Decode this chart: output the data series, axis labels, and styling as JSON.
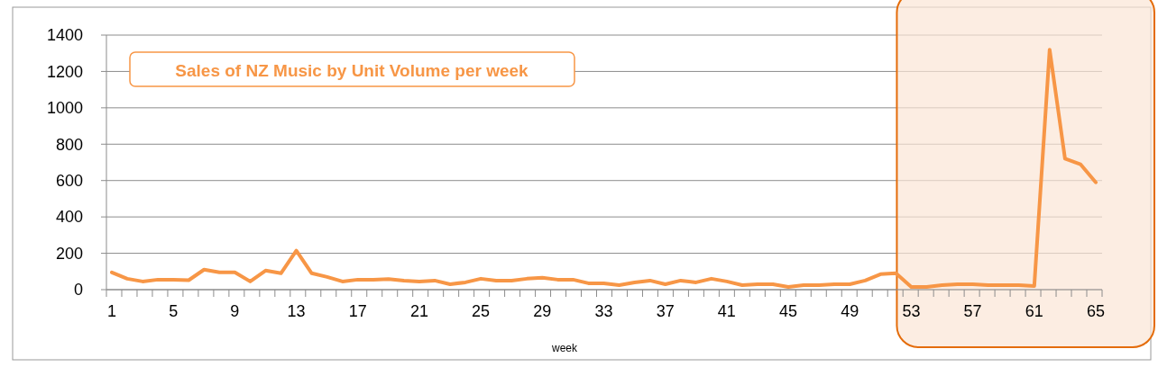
{
  "chart_data": {
    "type": "line",
    "title": "Sales of NZ Music by Unit Volume per week",
    "xlabel": "week",
    "categories": [
      "1",
      null,
      null,
      null,
      "5",
      null,
      null,
      null,
      "9",
      null,
      null,
      null,
      "13",
      null,
      null,
      null,
      "17",
      null,
      null,
      null,
      "21",
      null,
      null,
      null,
      "25",
      null,
      null,
      null,
      "29",
      null,
      null,
      null,
      "33",
      null,
      null,
      null,
      "37",
      null,
      null,
      null,
      "41",
      null,
      null,
      null,
      "45",
      null,
      null,
      null,
      "49",
      null,
      null,
      null,
      "53",
      null,
      null,
      null,
      "57",
      null,
      null,
      null,
      "61",
      null,
      null,
      null,
      "65"
    ],
    "series": [
      {
        "color": "#f79646",
        "values": [
          95,
          60,
          45,
          55,
          55,
          52,
          110,
          95,
          95,
          45,
          105,
          90,
          215,
          90,
          70,
          45,
          55,
          55,
          58,
          50,
          45,
          50,
          30,
          40,
          60,
          50,
          50,
          60,
          65,
          55,
          55,
          35,
          35,
          25,
          40,
          50,
          30,
          50,
          40,
          60,
          45,
          25,
          30,
          30,
          15,
          25,
          25,
          30,
          30,
          50,
          85,
          90,
          15,
          15,
          25,
          30,
          30,
          25,
          25,
          25,
          20,
          1320,
          720,
          690,
          590
        ]
      }
    ],
    "ylim": [
      0,
      1400
    ],
    "yticks": [
      0,
      200,
      400,
      600,
      800,
      1000,
      1200,
      1400
    ],
    "grid": "y",
    "marker": "none",
    "line_style": "solid",
    "bands": [
      {
        "axis": "x",
        "from": "53",
        "to": "65",
        "color": "#fbe5d6"
      }
    ]
  }
}
